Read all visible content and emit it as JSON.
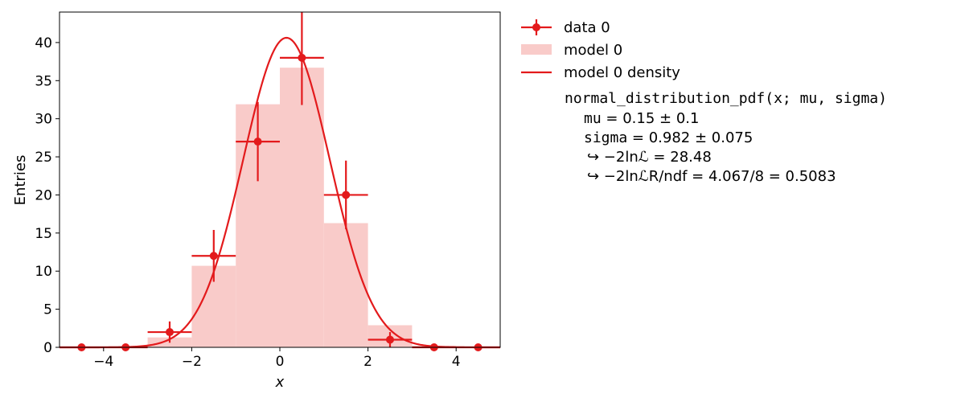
{
  "chart_data": {
    "type": "bar",
    "xlabel": "x",
    "ylabel": "Entries",
    "xlim": [
      -5,
      5
    ],
    "ylim": [
      0,
      44
    ],
    "xticks": [
      -4,
      -2,
      0,
      2,
      4
    ],
    "xtick_labels": [
      "−4",
      "−2",
      "0",
      "2",
      "4"
    ],
    "yticks": [
      0,
      5,
      10,
      15,
      20,
      25,
      30,
      35,
      40
    ],
    "ytick_labels": [
      "0",
      "5",
      "10",
      "15",
      "20",
      "25",
      "30",
      "35",
      "40"
    ],
    "grid": false,
    "legend_placement": "outside-right",
    "bin_edges": [
      -5,
      -4,
      -3,
      -2,
      -1,
      0,
      1,
      2,
      3,
      4,
      5
    ],
    "series": [
      {
        "name": "data 0",
        "kind": "errorbar",
        "x": [
          -4.5,
          -3.5,
          -2.5,
          -1.5,
          -0.5,
          0.5,
          1.5,
          2.5,
          3.5,
          4.5
        ],
        "values": [
          0,
          0,
          2,
          12,
          27,
          38,
          20,
          1,
          0,
          0
        ],
        "errors": [
          0,
          0,
          1.4,
          3.4,
          5.2,
          6.2,
          4.5,
          1.0,
          0,
          0
        ],
        "color": "#e31a1c"
      },
      {
        "name": "model 0",
        "kind": "histogram",
        "values": [
          0.02,
          0.1,
          1.3,
          10.7,
          31.9,
          36.7,
          16.3,
          2.9,
          0.2,
          0.01
        ],
        "color": "#f9cbc9"
      },
      {
        "name": "model 0 density",
        "kind": "curve",
        "function": "normal_pdf_scaled",
        "mu": 0.15,
        "sigma": 0.982,
        "scale": 100,
        "color": "#e31a1c"
      }
    ],
    "annotation": {
      "function": "normal_distribution_pdf",
      "args": "(x; mu, sigma)",
      "lines": [
        {
          "name": "mu",
          "text": " = 0.15 ± 0.1"
        },
        {
          "name": "sigma",
          "text": " = 0.982 ± 0.075"
        },
        {
          "name": "",
          "text": "↪ −2lnℒ = 28.48"
        },
        {
          "name": "",
          "text": "↪ −2lnℒR/ndf = 4.067/8 = 0.5083"
        }
      ]
    }
  }
}
